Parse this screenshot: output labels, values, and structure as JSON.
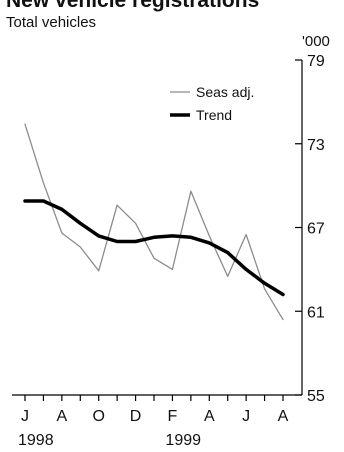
{
  "chart_data": {
    "type": "line",
    "title": "New vehicle registrations",
    "subtitle": "Total vehicles",
    "y_unit": "'000",
    "ylim": [
      55,
      79
    ],
    "y_ticks": [
      {
        "value": 79,
        "label": "79"
      },
      {
        "value": 73,
        "label": "73"
      },
      {
        "value": 67,
        "label": "67"
      },
      {
        "value": 61,
        "label": "61"
      },
      {
        "value": 55,
        "label": "55"
      }
    ],
    "x": [
      "Jun 1998",
      "Jul 1998",
      "Aug 1998",
      "Sep 1998",
      "Oct 1998",
      "Nov 1998",
      "Dec 1998",
      "Jan 1999",
      "Feb 1999",
      "Mar 1999",
      "Apr 1999",
      "May 1999",
      "Jun 1999",
      "Jul 1999",
      "Aug 1999"
    ],
    "x_tick_labels": [
      {
        "index": 0,
        "label": "J"
      },
      {
        "index": 2,
        "label": "A"
      },
      {
        "index": 4,
        "label": "O"
      },
      {
        "index": 6,
        "label": "D"
      },
      {
        "index": 8,
        "label": "F"
      },
      {
        "index": 10,
        "label": "A"
      },
      {
        "index": 12,
        "label": "J"
      },
      {
        "index": 14,
        "label": "A"
      }
    ],
    "x_year_labels": [
      {
        "index": 0,
        "label": "1998"
      },
      {
        "index": 8,
        "label": "1999"
      }
    ],
    "series": [
      {
        "name": "Seas adj.",
        "color": "#8c8c8c",
        "width": "thin",
        "values": [
          74.4,
          70.2,
          66.6,
          65.6,
          63.9,
          68.6,
          67.3,
          64.8,
          64.0,
          69.6,
          66.4,
          63.5,
          66.5,
          62.6,
          60.4
        ]
      },
      {
        "name": "Trend",
        "color": "#000000",
        "width": "thick",
        "values": [
          68.9,
          68.9,
          68.3,
          67.3,
          66.4,
          66.0,
          66.0,
          66.3,
          66.4,
          66.3,
          65.9,
          65.2,
          64.0,
          63.0,
          62.2
        ]
      }
    ],
    "legend_position": "top-right",
    "grid": false
  }
}
